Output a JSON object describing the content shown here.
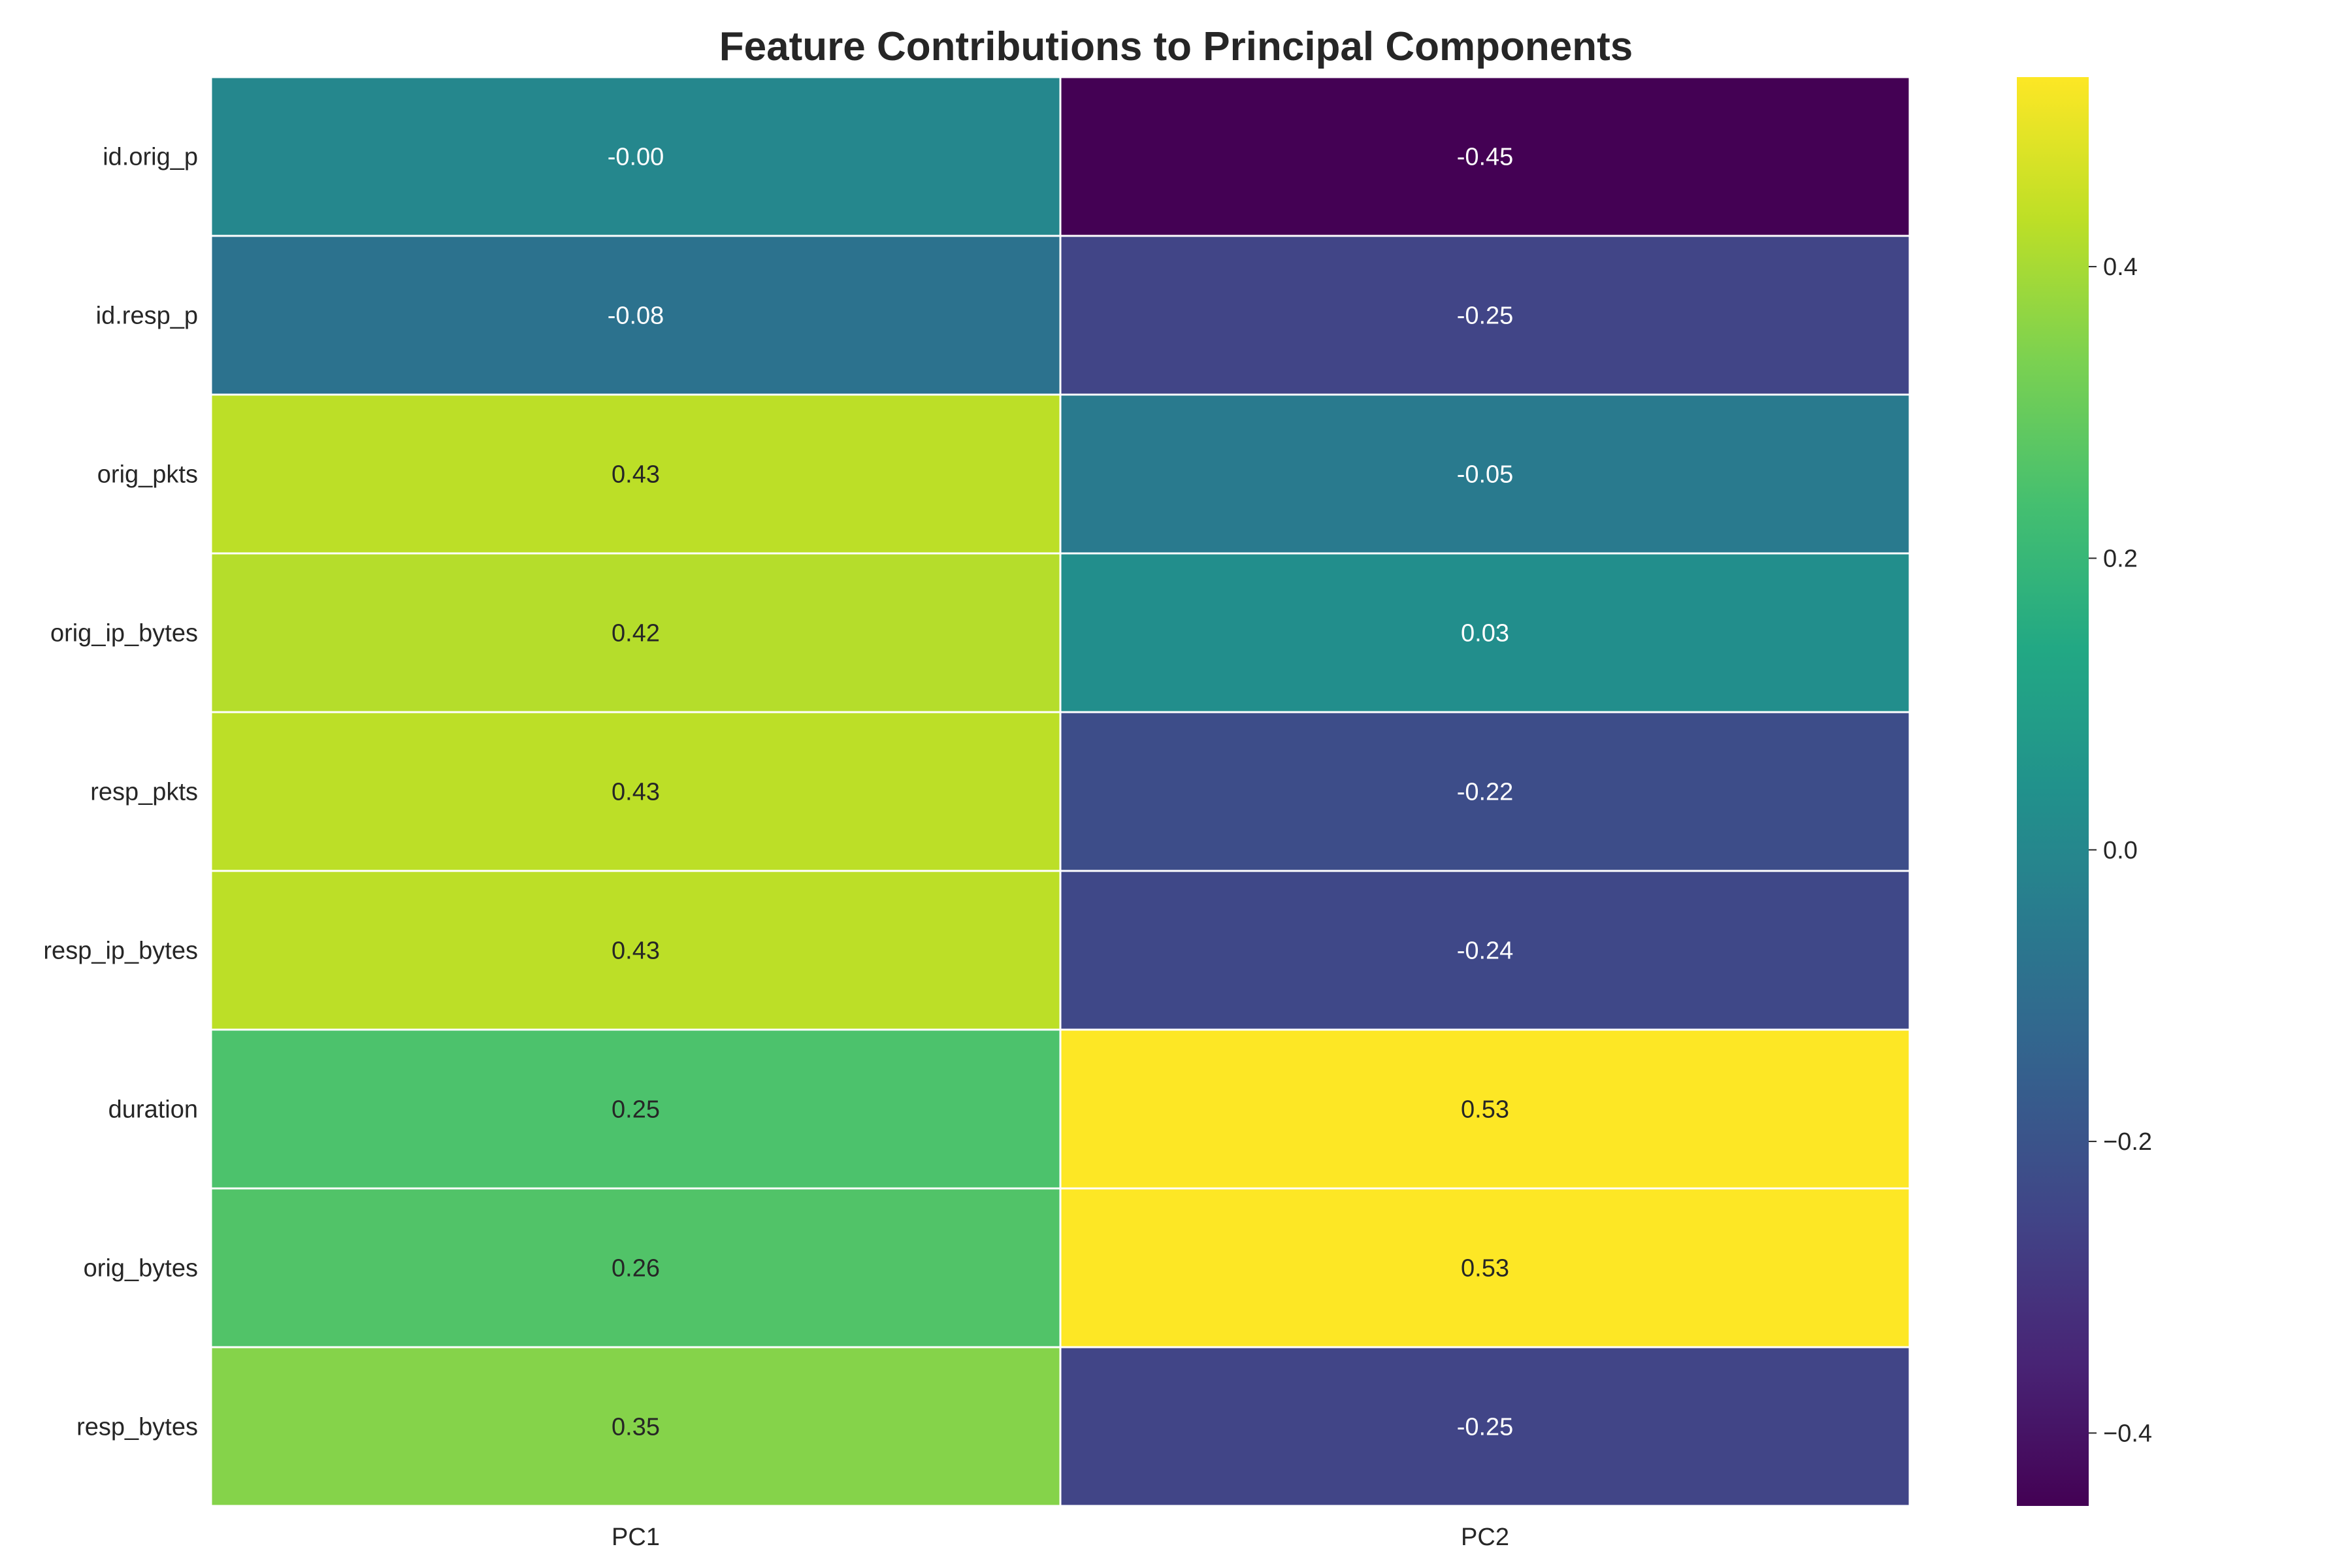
{
  "chart_data": {
    "type": "heatmap",
    "title": "Feature Contributions to Principal Components",
    "xlabel": "",
    "ylabel": "",
    "columns": [
      "PC1",
      "PC2"
    ],
    "rows": [
      "id.orig_p",
      "id.resp_p",
      "orig_pkts",
      "orig_ip_bytes",
      "resp_pkts",
      "resp_ip_bytes",
      "duration",
      "orig_bytes",
      "resp_bytes"
    ],
    "values": [
      [
        -0.0,
        -0.45
      ],
      [
        -0.08,
        -0.25
      ],
      [
        0.43,
        -0.05
      ],
      [
        0.42,
        0.03
      ],
      [
        0.43,
        -0.22
      ],
      [
        0.43,
        -0.24
      ],
      [
        0.25,
        0.53
      ],
      [
        0.26,
        0.53
      ],
      [
        0.35,
        -0.25
      ]
    ],
    "value_labels": [
      [
        "-0.00",
        "-0.45"
      ],
      [
        "-0.08",
        "-0.25"
      ],
      [
        "0.43",
        "-0.05"
      ],
      [
        "0.42",
        "0.03"
      ],
      [
        "0.43",
        "-0.22"
      ],
      [
        "0.43",
        "-0.24"
      ],
      [
        "0.25",
        "0.53"
      ],
      [
        "0.26",
        "0.53"
      ],
      [
        "0.35",
        "-0.25"
      ]
    ],
    "colormap": "viridis",
    "color_range": [
      -0.45,
      0.53
    ],
    "colorbar_ticks": [
      "0.4",
      "0.2",
      "0.0",
      "−0.2",
      "−0.4"
    ],
    "colorbar_tick_values": [
      0.4,
      0.2,
      0.0,
      -0.2,
      -0.4
    ],
    "grid": false,
    "cell_border_color": "#ffffff"
  }
}
